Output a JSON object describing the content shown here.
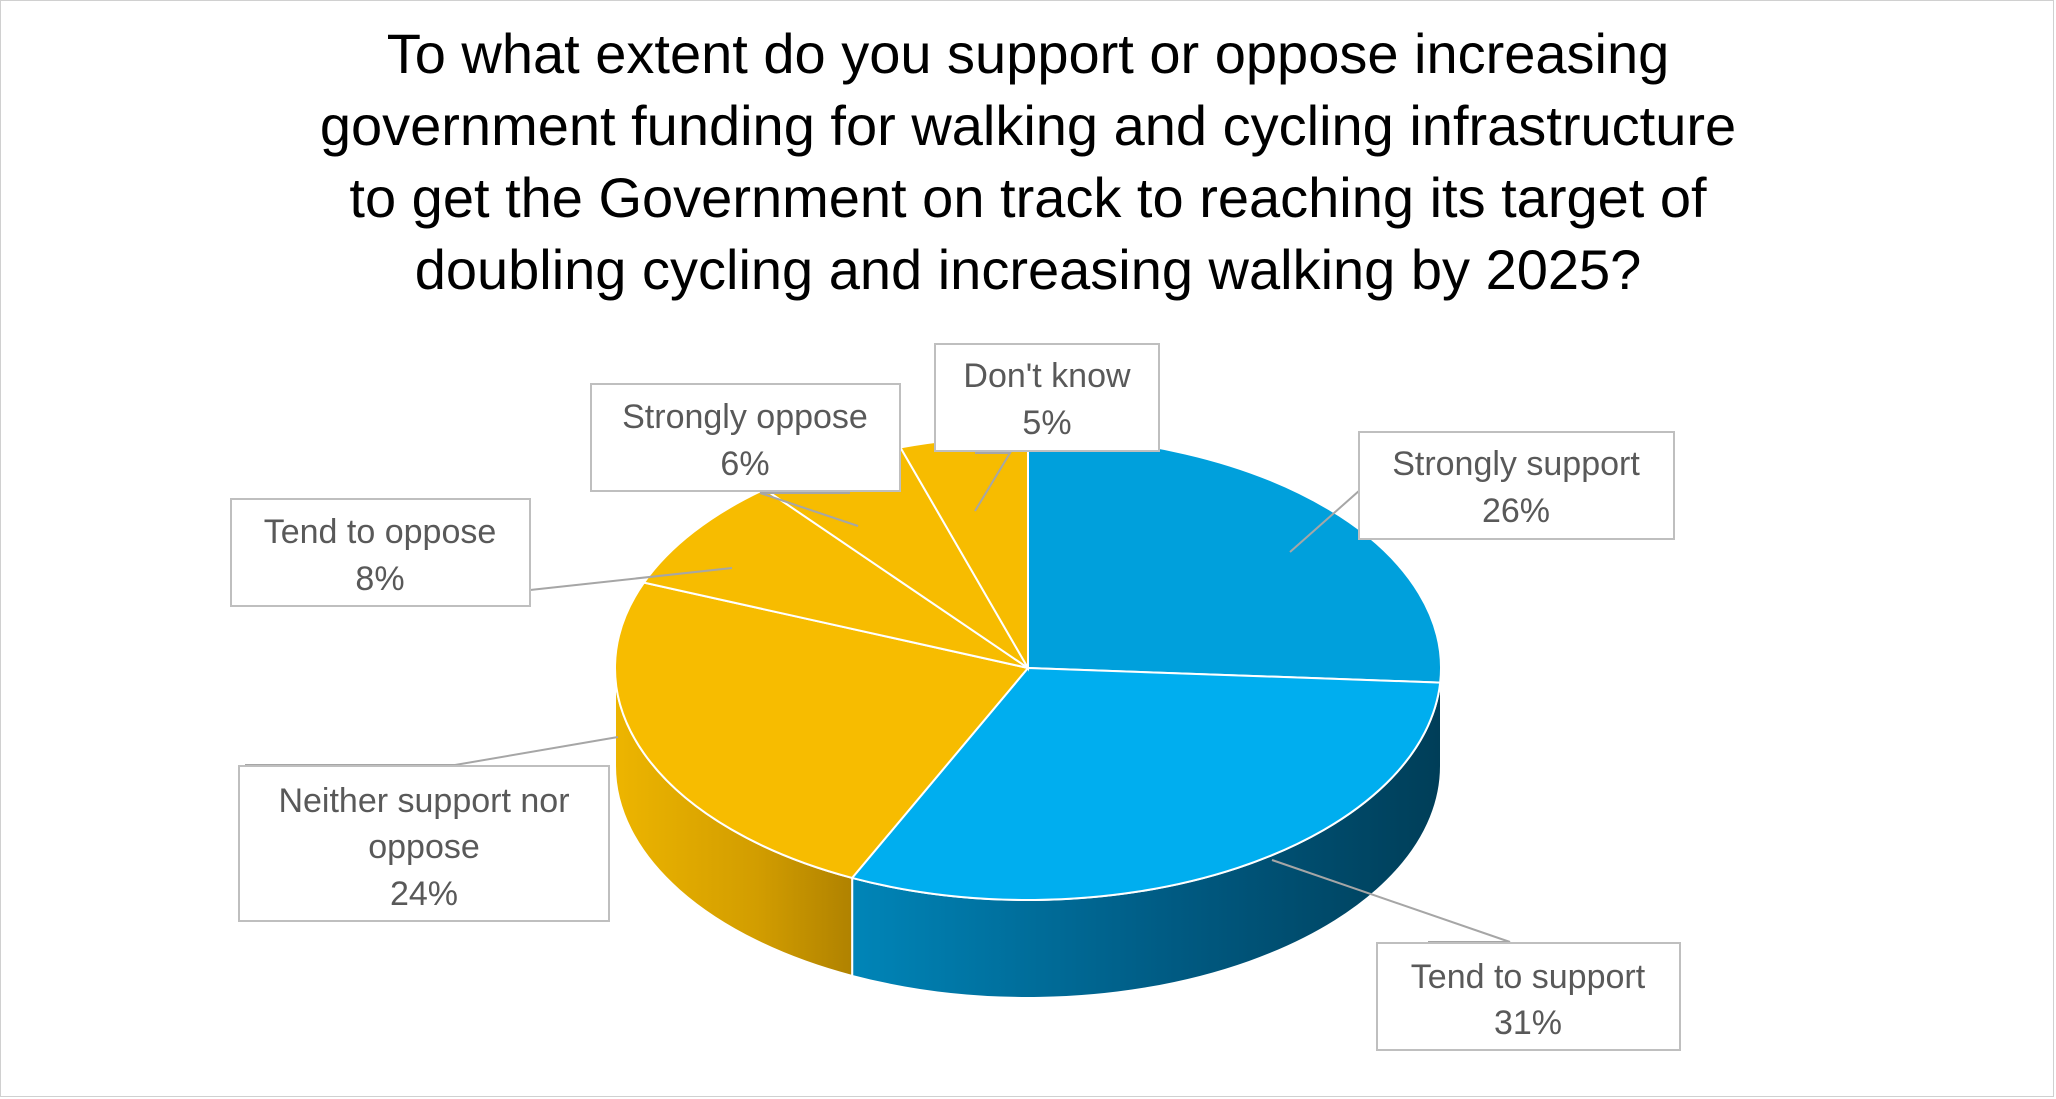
{
  "chart_data": {
    "type": "pie",
    "style": "3d",
    "title_lines": [
      "To what extent do you support or oppose increasing",
      "government funding for walking and cycling infrastructure",
      "to get the Government on track to reaching its target of",
      "doubling cycling and increasing walking by 2025?"
    ],
    "slices": [
      {
        "name": "Strongly support",
        "value": 26,
        "label": "26%",
        "color": "#00A0DC"
      },
      {
        "name": "Tend to support",
        "value": 31,
        "label": "31%",
        "color": "#00AEEF"
      },
      {
        "name": "Neither support nor oppose",
        "name_lines": [
          "Neither support nor",
          "oppose"
        ],
        "value": 24,
        "label": "24%",
        "color": "#F7BC00"
      },
      {
        "name": "Tend to oppose",
        "value": 8,
        "label": "8%",
        "color": "#F7BC00"
      },
      {
        "name": "Strongly oppose",
        "value": 6,
        "label": "6%",
        "color": "#F7BC00"
      },
      {
        "name": "Don't know",
        "value": 5,
        "label": "5%",
        "color": "#F7BC00"
      }
    ],
    "blue_dark": "#004866",
    "amber_dark": "#B58A00"
  }
}
